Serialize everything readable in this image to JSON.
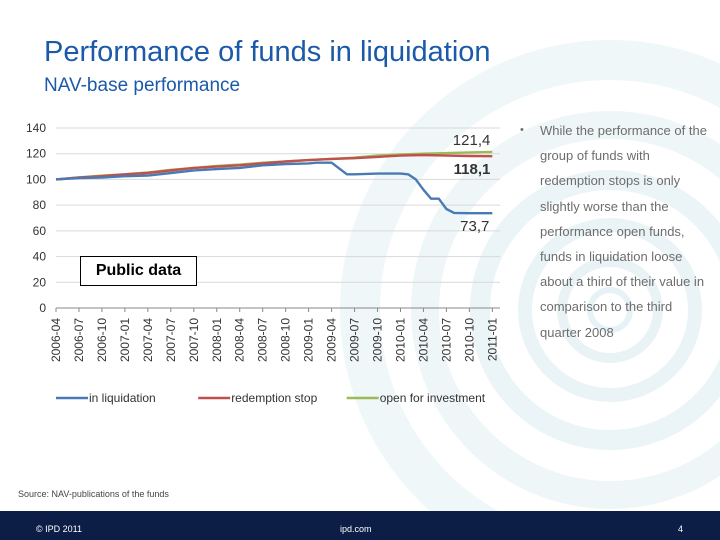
{
  "slide": {
    "title": "Performance of funds in liquidation",
    "subtitle": "NAV-base performance",
    "bullet_text": "While the performance of the group of funds with redemption stops is only slightly worse than the performance open funds, funds in liquidation loose about a third of their value in comparison to the third quarter 2008",
    "public_label": "Public data",
    "source": "Source: NAV-publications of the funds",
    "footer": {
      "copyright": "© IPD 2011",
      "site": "ipd.com",
      "page": "4"
    }
  },
  "colors": {
    "liquidation": "#4a7ab5",
    "redemption_stop": "#c0504d",
    "open": "#9bbb59",
    "title": "#1a5aa8",
    "footer": "#0c1e46"
  },
  "chart_data": {
    "type": "line",
    "xlabel": "",
    "ylabel": "",
    "ylim": [
      0,
      140
    ],
    "yticks": [
      0,
      20,
      40,
      60,
      80,
      100,
      120,
      140
    ],
    "x_tick_labels": [
      "2006-04",
      "2006-07",
      "2006-10",
      "2007-01",
      "2007-04",
      "2007-07",
      "2007-10",
      "2008-01",
      "2008-04",
      "2008-07",
      "2008-10",
      "2009-01",
      "2009-04",
      "2009-07",
      "2009-10",
      "2010-01",
      "2010-04",
      "2010-07",
      "2010-10",
      "2011-01"
    ],
    "grid": "horizontal",
    "legend": "bottom",
    "series": [
      {
        "name": "in liquidation",
        "color": "#4a7ab5",
        "points": [
          [
            "2006-04",
            100
          ],
          [
            "2006-07",
            101
          ],
          [
            "2006-10",
            101.5
          ],
          [
            "2007-01",
            102.5
          ],
          [
            "2007-04",
            103
          ],
          [
            "2007-07",
            105
          ],
          [
            "2007-10",
            107
          ],
          [
            "2008-01",
            108
          ],
          [
            "2008-04",
            109
          ],
          [
            "2008-07",
            111
          ],
          [
            "2008-10",
            112
          ],
          [
            "2009-01",
            112.5
          ],
          [
            "2009-02",
            113
          ],
          [
            "2009-04",
            113
          ],
          [
            "2009-06",
            104
          ],
          [
            "2009-07",
            104
          ],
          [
            "2009-10",
            104.5
          ],
          [
            "2010-01",
            104.5
          ],
          [
            "2010-02",
            104
          ],
          [
            "2010-03",
            100
          ],
          [
            "2010-04",
            92
          ],
          [
            "2010-05",
            85
          ],
          [
            "2010-06",
            85
          ],
          [
            "2010-07",
            77
          ],
          [
            "2010-08",
            74
          ],
          [
            "2010-10",
            73.7
          ],
          [
            "2011-01",
            73.7
          ]
        ]
      },
      {
        "name": "redemption stop",
        "color": "#c0504d",
        "points": [
          [
            "2006-04",
            100
          ],
          [
            "2006-07",
            101.5
          ],
          [
            "2006-10",
            102.5
          ],
          [
            "2007-01",
            104
          ],
          [
            "2007-04",
            105
          ],
          [
            "2007-07",
            107
          ],
          [
            "2007-10",
            109
          ],
          [
            "2008-01",
            110
          ],
          [
            "2008-04",
            111
          ],
          [
            "2008-07",
            112.5
          ],
          [
            "2008-10",
            114
          ],
          [
            "2009-01",
            115
          ],
          [
            "2009-04",
            116
          ],
          [
            "2009-07",
            116.5
          ],
          [
            "2009-10",
            117.5
          ],
          [
            "2010-01",
            118.5
          ],
          [
            "2010-04",
            119
          ],
          [
            "2010-07",
            118.5
          ],
          [
            "2010-10",
            118.2
          ],
          [
            "2011-01",
            118.1
          ]
        ]
      },
      {
        "name": "open for investment",
        "color": "#9bbb59",
        "points": [
          [
            "2006-04",
            100
          ],
          [
            "2006-07",
            101.5
          ],
          [
            "2006-10",
            103
          ],
          [
            "2007-01",
            104
          ],
          [
            "2007-04",
            105.5
          ],
          [
            "2007-07",
            107.5
          ],
          [
            "2007-10",
            109
          ],
          [
            "2008-01",
            110.5
          ],
          [
            "2008-04",
            111.5
          ],
          [
            "2008-07",
            113
          ],
          [
            "2008-10",
            114
          ],
          [
            "2009-01",
            115
          ],
          [
            "2009-04",
            116
          ],
          [
            "2009-07",
            117
          ],
          [
            "2009-10",
            118.5
          ],
          [
            "2010-01",
            119.5
          ],
          [
            "2010-04",
            120
          ],
          [
            "2010-07",
            120.5
          ],
          [
            "2010-10",
            121
          ],
          [
            "2011-01",
            121.4
          ]
        ]
      }
    ],
    "annotations": [
      {
        "text": "121,4",
        "series": "open for investment",
        "bold": false
      },
      {
        "text": "118,1",
        "series": "redemption stop",
        "bold": true
      },
      {
        "text": "73,7",
        "series": "in liquidation",
        "bold": false
      }
    ]
  }
}
